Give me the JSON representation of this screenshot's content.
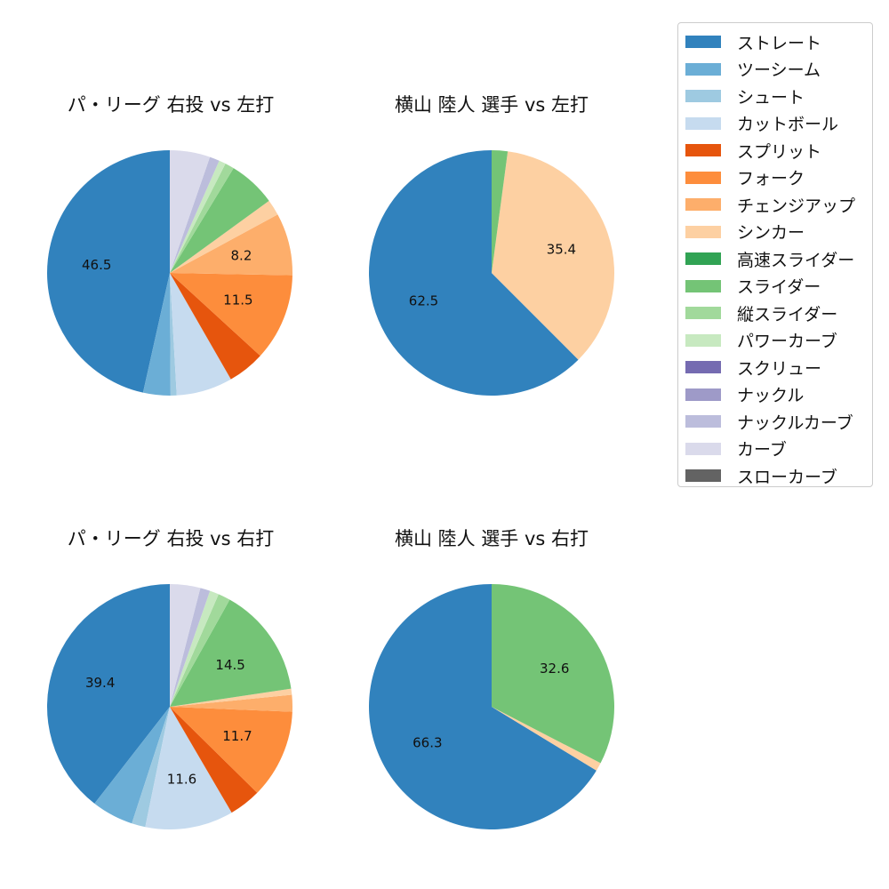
{
  "pitch_types": [
    {
      "name": "ストレート",
      "color": "#3182bd"
    },
    {
      "name": "ツーシーム",
      "color": "#6baed6"
    },
    {
      "name": "シュート",
      "color": "#9ecae1"
    },
    {
      "name": "カットボール",
      "color": "#c6dbef"
    },
    {
      "name": "スプリット",
      "color": "#e6550d"
    },
    {
      "name": "フォーク",
      "color": "#fd8d3c"
    },
    {
      "name": "チェンジアップ",
      "color": "#fdae6b"
    },
    {
      "name": "シンカー",
      "color": "#fdd0a2"
    },
    {
      "name": "高速スライダー",
      "color": "#31a354"
    },
    {
      "name": "スライダー",
      "color": "#74c476"
    },
    {
      "name": "縦スライダー",
      "color": "#a1d99b"
    },
    {
      "name": "パワーカーブ",
      "color": "#c7e9c0"
    },
    {
      "name": "スクリュー",
      "color": "#756bb1"
    },
    {
      "name": "ナックル",
      "color": "#9e9ac8"
    },
    {
      "name": "ナックルカーブ",
      "color": "#bcbddc"
    },
    {
      "name": "カーブ",
      "color": "#dadaeb"
    },
    {
      "name": "スローカーブ",
      "color": "#636363"
    }
  ],
  "chart_data": [
    {
      "type": "pie",
      "title": "パ・リーグ 右投 vs 左打",
      "labels": [
        "ストレート",
        "ツーシーム",
        "シュート",
        "カットボール",
        "スプリット",
        "フォーク",
        "チェンジアップ",
        "シンカー",
        "高速スライダー",
        "スライダー",
        "縦スライダー",
        "パワーカーブ",
        "スクリュー",
        "ナックル",
        "ナックルカーブ",
        "カーブ",
        "スローカーブ"
      ],
      "values": [
        46.5,
        3.6,
        0.8,
        7.4,
        4.9,
        11.5,
        8.2,
        2.1,
        0.0,
        6.3,
        1.2,
        0.9,
        0.0,
        0.0,
        1.3,
        5.3,
        0.0
      ],
      "data_labels": [
        "46.5",
        "",
        "",
        "",
        "",
        "11.5",
        "8.2",
        "",
        "",
        "",
        "",
        "",
        "",
        "",
        "",
        "",
        ""
      ]
    },
    {
      "type": "pie",
      "title": "横山 陸人 選手 vs 左打",
      "labels": [
        "ストレート",
        "シンカー",
        "スライダー"
      ],
      "values": [
        62.5,
        35.4,
        2.1
      ],
      "data_labels": [
        "62.5",
        "35.4",
        ""
      ]
    },
    {
      "type": "pie",
      "title": "パ・リーグ 右投 vs 右打",
      "labels": [
        "ストレート",
        "ツーシーム",
        "シュート",
        "カットボール",
        "スプリット",
        "フォーク",
        "チェンジアップ",
        "シンカー",
        "高速スライダー",
        "スライダー",
        "縦スライダー",
        "パワーカーブ",
        "スクリュー",
        "ナックル",
        "ナックルカーブ",
        "カーブ",
        "スローカーブ"
      ],
      "values": [
        39.4,
        5.5,
        1.8,
        11.6,
        4.2,
        11.7,
        2.2,
        0.8,
        0.0,
        14.5,
        1.6,
        1.2,
        0.0,
        0.0,
        1.3,
        4.0,
        0.0
      ],
      "data_labels": [
        "39.4",
        "",
        "",
        "11.6",
        "",
        "11.7",
        "",
        "",
        "",
        "14.5",
        "",
        "",
        "",
        "",
        "",
        "",
        ""
      ]
    },
    {
      "type": "pie",
      "title": "横山 陸人 選手 vs 右打",
      "labels": [
        "ストレート",
        "シンカー",
        "スライダー"
      ],
      "values": [
        66.3,
        1.1,
        32.6
      ],
      "data_labels": [
        "66.3",
        "",
        "32.6"
      ]
    }
  ]
}
